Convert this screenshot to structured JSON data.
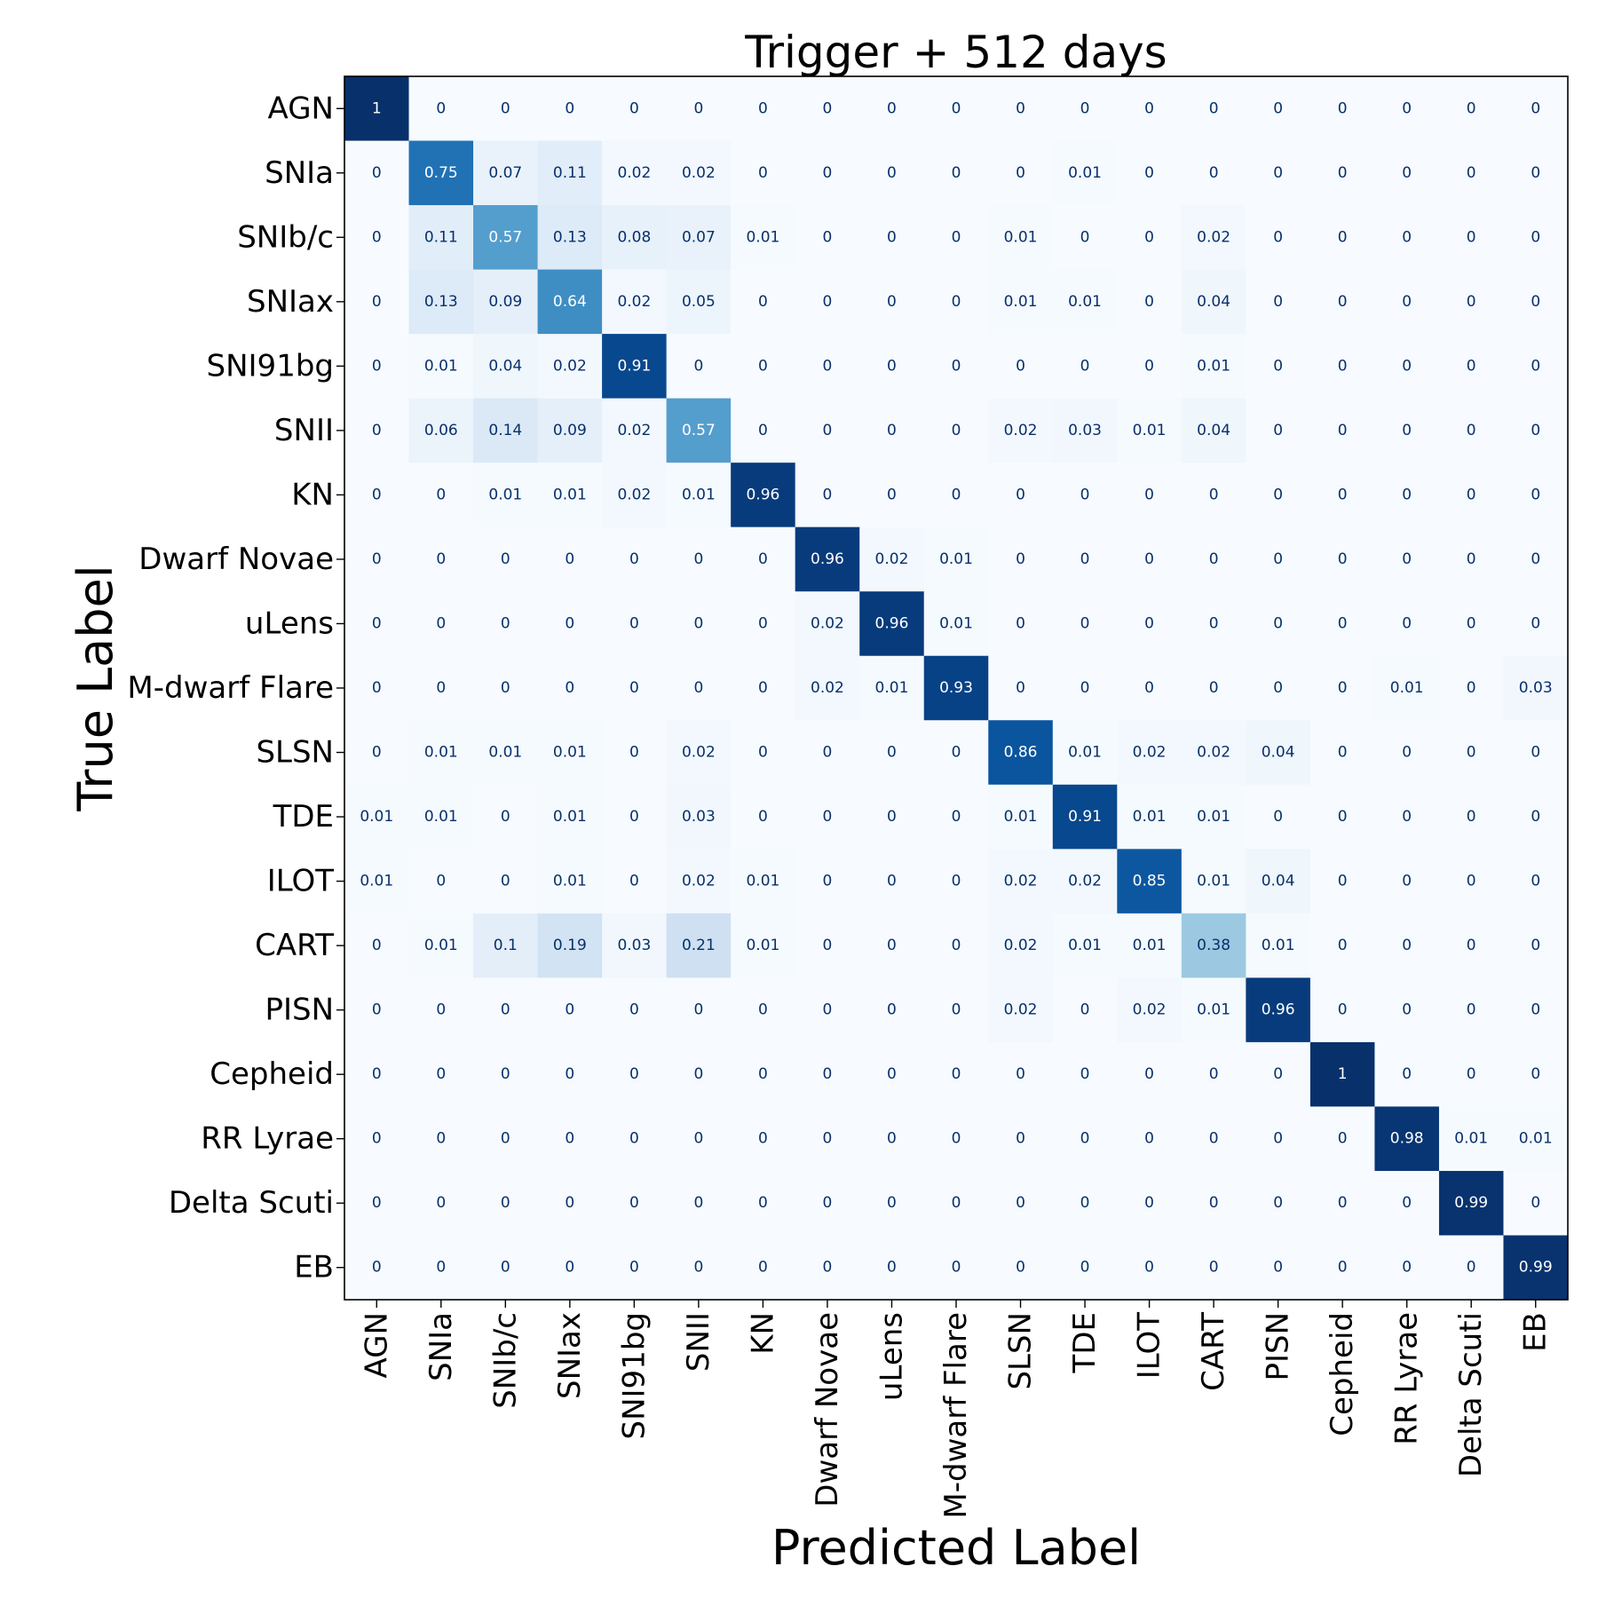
{
  "chart_data": {
    "type": "heatmap",
    "title": "Trigger + 512 days",
    "xlabel": "Predicted Label",
    "ylabel": "True Label",
    "colormap": "Blues",
    "value_range": [
      0,
      1
    ],
    "categories": [
      "AGN",
      "SNIa",
      "SNIb/c",
      "SNIax",
      "SNI91bg",
      "SNII",
      "KN",
      "Dwarf Novae",
      "uLens",
      "M-dwarf Flare",
      "SLSN",
      "TDE",
      "ILOT",
      "CART",
      "PISN",
      "Cepheid",
      "RR Lyrae",
      "Delta Scuti",
      "EB"
    ],
    "values": [
      [
        1,
        0,
        0,
        0,
        0,
        0,
        0,
        0,
        0,
        0,
        0,
        0,
        0,
        0,
        0,
        0,
        0,
        0,
        0
      ],
      [
        0,
        0.75,
        0.07,
        0.11,
        0.02,
        0.02,
        0,
        0,
        0,
        0,
        0,
        0.01,
        0,
        0,
        0,
        0,
        0,
        0,
        0
      ],
      [
        0,
        0.11,
        0.57,
        0.13,
        0.08,
        0.07,
        0.01,
        0,
        0,
        0,
        0.01,
        0,
        0,
        0.02,
        0,
        0,
        0,
        0,
        0
      ],
      [
        0,
        0.13,
        0.09,
        0.64,
        0.02,
        0.05,
        0,
        0,
        0,
        0,
        0.01,
        0.01,
        0,
        0.04,
        0,
        0,
        0,
        0,
        0
      ],
      [
        0,
        0.01,
        0.04,
        0.02,
        0.91,
        0,
        0,
        0,
        0,
        0,
        0,
        0,
        0,
        0.01,
        0,
        0,
        0,
        0,
        0
      ],
      [
        0,
        0.06,
        0.14,
        0.09,
        0.02,
        0.57,
        0,
        0,
        0,
        0,
        0.02,
        0.03,
        0.01,
        0.04,
        0,
        0,
        0,
        0,
        0
      ],
      [
        0,
        0,
        0.01,
        0.01,
        0.02,
        0.01,
        0.96,
        0,
        0,
        0,
        0,
        0,
        0,
        0,
        0,
        0,
        0,
        0,
        0
      ],
      [
        0,
        0,
        0,
        0,
        0,
        0,
        0,
        0.96,
        0.02,
        0.01,
        0,
        0,
        0,
        0,
        0,
        0,
        0,
        0,
        0
      ],
      [
        0,
        0,
        0,
        0,
        0,
        0,
        0,
        0.02,
        0.96,
        0.01,
        0,
        0,
        0,
        0,
        0,
        0,
        0,
        0,
        0
      ],
      [
        0,
        0,
        0,
        0,
        0,
        0,
        0,
        0.02,
        0.01,
        0.93,
        0,
        0,
        0,
        0,
        0,
        0,
        0.01,
        0,
        0.03
      ],
      [
        0,
        0.01,
        0.01,
        0.01,
        0,
        0.02,
        0,
        0,
        0,
        0,
        0.86,
        0.01,
        0.02,
        0.02,
        0.04,
        0,
        0,
        0,
        0
      ],
      [
        0.01,
        0.01,
        0,
        0.01,
        0,
        0.03,
        0,
        0,
        0,
        0,
        0.01,
        0.91,
        0.01,
        0.01,
        0,
        0,
        0,
        0,
        0
      ],
      [
        0.01,
        0,
        0,
        0.01,
        0,
        0.02,
        0.01,
        0,
        0,
        0,
        0.02,
        0.02,
        0.85,
        0.01,
        0.04,
        0,
        0,
        0,
        0
      ],
      [
        0,
        0.01,
        0.1,
        0.19,
        0.03,
        0.21,
        0.01,
        0,
        0,
        0,
        0.02,
        0.01,
        0.01,
        0.38,
        0.01,
        0,
        0,
        0,
        0
      ],
      [
        0,
        0,
        0,
        0,
        0,
        0,
        0,
        0,
        0,
        0,
        0.02,
        0,
        0.02,
        0.01,
        0.96,
        0,
        0,
        0,
        0
      ],
      [
        0,
        0,
        0,
        0,
        0,
        0,
        0,
        0,
        0,
        0,
        0,
        0,
        0,
        0,
        0,
        1,
        0,
        0,
        0
      ],
      [
        0,
        0,
        0,
        0,
        0,
        0,
        0,
        0,
        0,
        0,
        0,
        0,
        0,
        0,
        0,
        0,
        0.98,
        0.01,
        0.01
      ],
      [
        0,
        0,
        0,
        0,
        0,
        0,
        0,
        0,
        0,
        0,
        0,
        0,
        0,
        0,
        0,
        0,
        0,
        0.99,
        0
      ],
      [
        0,
        0,
        0,
        0,
        0,
        0,
        0,
        0,
        0,
        0,
        0,
        0,
        0,
        0,
        0,
        0,
        0,
        0,
        0.99
      ]
    ]
  }
}
